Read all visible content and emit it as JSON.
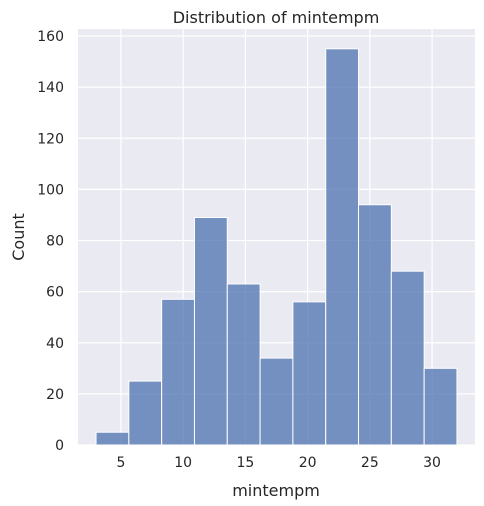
{
  "chart_data": {
    "type": "bar",
    "subtype": "histogram",
    "title": "Distribution of mintempm",
    "xlabel": "mintempm",
    "ylabel": "Count",
    "bin_edges": [
      3.0,
      5.636,
      8.273,
      10.909,
      13.545,
      16.182,
      18.818,
      21.455,
      24.091,
      26.727,
      29.364,
      32.0
    ],
    "values": [
      5,
      25,
      57,
      89,
      63,
      34,
      56,
      155,
      94,
      68,
      30
    ],
    "xlim": [
      1.55,
      33.45
    ],
    "ylim": [
      0,
      162.75
    ],
    "xticks": [
      5,
      10,
      15,
      20,
      25,
      30
    ],
    "yticks": [
      0,
      20,
      40,
      60,
      80,
      100,
      120,
      140,
      160
    ],
    "grid": true,
    "colors": {
      "bar_fill": "#4c72b0",
      "bar_edge": "#ffffff",
      "plot_background": "#eaeaf2",
      "grid": "#ffffff",
      "text": "#262626"
    }
  }
}
